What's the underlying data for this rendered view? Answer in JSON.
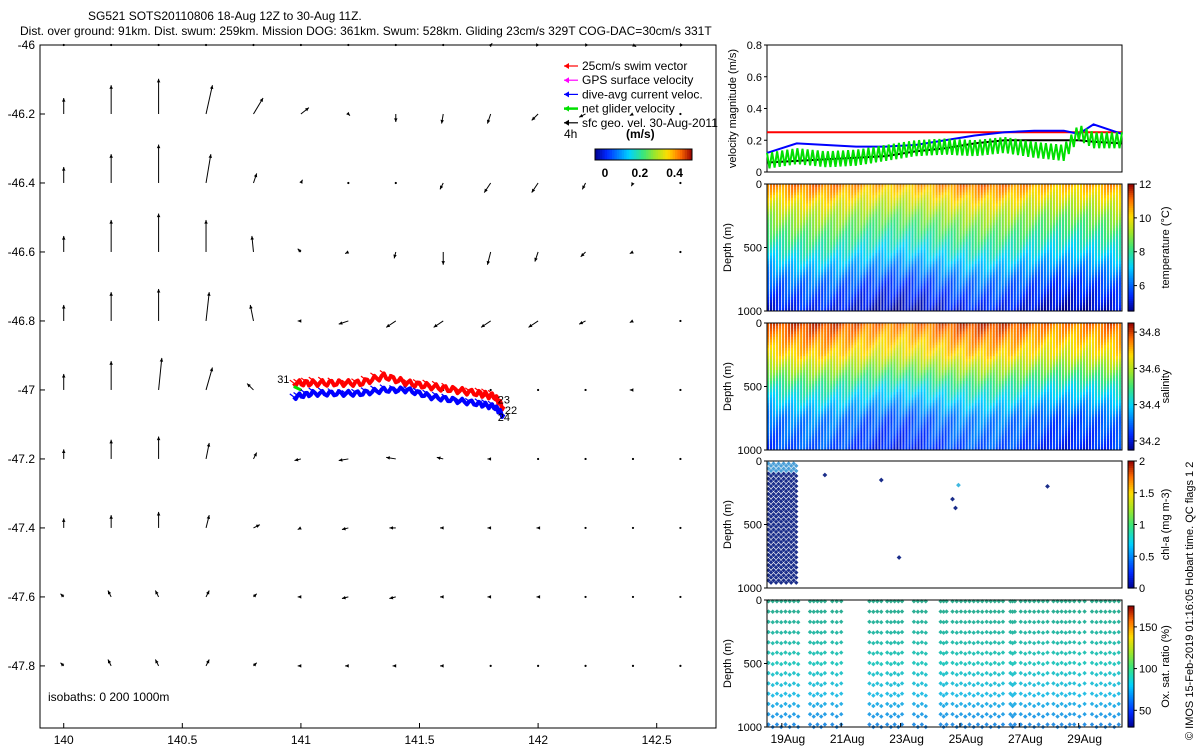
{
  "header": {
    "title": "SG521 SOTS20110806 18-Aug 12Z to 30-Aug 11Z.",
    "subtitle": "Dist. over ground: 91km. Dist. swum: 259km. Mission DOG: 361km. Swum: 528km. Gliding 23cm/s 329T COG-DAC=30cm/s 331T"
  },
  "colors": {
    "swim": "#ff0000",
    "gps": "#ff00ff",
    "dac": "#0000ff",
    "net": "#00e000",
    "geo": "#000000",
    "oxy_marker": "#2ab59a",
    "chl_marker": "#1a2d8a",
    "axis": "#000000"
  },
  "chart_data": [
    {
      "type": "scatter",
      "id": "map",
      "xlim": [
        139.9,
        142.75
      ],
      "ylim": [
        -47.98,
        -46.0
      ],
      "xticks": [
        140,
        140.5,
        141,
        141.5,
        142,
        142.5
      ],
      "xtick_labels": [
        "140",
        "140.5",
        "141",
        "141.5",
        "142",
        "142.5"
      ],
      "yticks": [
        -46,
        -46.2,
        -46.4,
        -46.6,
        -46.8,
        -47,
        -47.2,
        -47.4,
        -47.6,
        -47.8
      ],
      "ytick_labels": [
        "-46",
        "-46.2",
        "-46.4",
        "-46.6",
        "-46.8",
        "-47",
        "-47.2",
        "-47.4",
        "-47.6",
        "-47.8"
      ],
      "legend": {
        "position": "top-right",
        "entries": [
          {
            "label": "25cm/s swim vector",
            "color": "#ff0000"
          },
          {
            "label": "GPS surface velocity",
            "color": "#ff00ff"
          },
          {
            "label": "dive-avg current veloc.",
            "color": "#0000ff"
          },
          {
            "label": "net glider velocity",
            "color": "#00e000"
          },
          {
            "label": "sfc geo. vel. 30-Aug-2011",
            "color": "#000000"
          }
        ],
        "scale_prefix": "4h",
        "colorbar_label": "(m/s)",
        "colorbar_ticks": [
          "0",
          "0.2",
          "0.4"
        ]
      },
      "track_labels": [
        "31",
        "23",
        "22",
        "24"
      ],
      "isobaths_label": "isobaths: 0   200  1000m",
      "grid_lon": [
        140,
        140.2,
        140.4,
        140.6,
        140.8,
        141,
        141.2,
        141.4,
        141.6,
        141.8,
        142,
        142.2,
        142.4,
        142.6
      ],
      "grid_lat": [
        -46,
        -46.2,
        -46.4,
        -46.6,
        -46.8,
        -47,
        -47.2,
        -47.4,
        -47.6,
        -47.8
      ],
      "geo_u": [
        [
          0.0,
          0.0,
          0.0,
          0.0,
          0.0,
          0.0,
          0.0,
          0.0,
          0.0,
          0.01,
          0.01,
          0.02,
          0.02,
          0.02
        ],
        [
          0.0,
          0.0,
          0.0,
          0.04,
          0.06,
          0.05,
          0.01,
          0.0,
          -0.01,
          -0.02,
          -0.04,
          -0.04,
          -0.02,
          0.0
        ],
        [
          0.0,
          0.0,
          0.0,
          0.03,
          0.02,
          0.01,
          0.0,
          0.0,
          -0.02,
          -0.04,
          -0.04,
          -0.02,
          -0.01,
          0.0
        ],
        [
          0.0,
          0.0,
          0.0,
          0.0,
          -0.01,
          -0.02,
          -0.02,
          -0.01,
          0.0,
          -0.02,
          -0.02,
          -0.03,
          -0.02,
          0.0
        ],
        [
          0.0,
          0.0,
          0.0,
          0.02,
          -0.02,
          -0.02,
          -0.06,
          -0.06,
          -0.06,
          -0.06,
          -0.06,
          -0.04,
          -0.02,
          0.0
        ],
        [
          0.0,
          0.0,
          0.02,
          0.04,
          -0.04,
          0.0,
          0.0,
          0.0,
          0.0,
          0.0,
          0.0,
          0.0,
          -0.02,
          0.0
        ],
        [
          0.0,
          0.0,
          0.0,
          0.02,
          0.02,
          -0.04,
          -0.06,
          -0.06,
          -0.04,
          -0.02,
          0.0,
          0.0,
          0.0,
          0.0
        ],
        [
          0.0,
          0.0,
          0.0,
          0.02,
          0.04,
          -0.02,
          -0.04,
          -0.04,
          -0.02,
          -0.02,
          -0.01,
          0.0,
          0.0,
          0.0
        ],
        [
          -0.02,
          -0.02,
          -0.02,
          0.02,
          0.02,
          -0.02,
          -0.04,
          -0.04,
          -0.02,
          -0.02,
          -0.01,
          0.0,
          0.0,
          0.0
        ],
        [
          -0.02,
          -0.02,
          -0.02,
          0.02,
          0.02,
          -0.02,
          -0.02,
          -0.02,
          -0.02,
          0.0,
          0.0,
          0.0,
          0.0,
          0.0
        ]
      ],
      "geo_v": [
        [
          0.0,
          0.0,
          0.0,
          0.0,
          0.0,
          0.0,
          0.0,
          0.0,
          0.0,
          0.01,
          0.0,
          0.0,
          -0.01,
          0.0
        ],
        [
          0.1,
          0.18,
          0.22,
          0.18,
          0.1,
          0.04,
          -0.01,
          -0.05,
          -0.06,
          -0.06,
          -0.04,
          -0.02,
          -0.01,
          0.0
        ],
        [
          0.1,
          0.18,
          0.24,
          0.18,
          0.06,
          0.02,
          0.0,
          0.0,
          -0.04,
          -0.06,
          -0.06,
          -0.04,
          -0.02,
          0.0
        ],
        [
          0.1,
          0.2,
          0.24,
          0.2,
          0.1,
          0.02,
          -0.01,
          -0.04,
          -0.08,
          -0.08,
          -0.06,
          -0.03,
          -0.01,
          0.0
        ],
        [
          0.1,
          0.18,
          0.2,
          0.18,
          0.1,
          0.0,
          -0.02,
          -0.04,
          -0.04,
          -0.04,
          -0.04,
          -0.02,
          -0.01,
          0.0
        ],
        [
          0.1,
          0.18,
          0.2,
          0.14,
          0.04,
          0.0,
          0.0,
          0.0,
          0.0,
          0.0,
          0.0,
          0.0,
          0.0,
          0.0
        ],
        [
          0.06,
          0.12,
          0.14,
          0.1,
          0.04,
          -0.01,
          -0.01,
          0.01,
          0.01,
          0.0,
          0.0,
          0.0,
          0.0,
          0.0
        ],
        [
          0.06,
          0.08,
          0.1,
          0.08,
          0.02,
          -0.01,
          -0.01,
          0.0,
          0.0,
          0.0,
          0.0,
          0.0,
          0.0,
          0.0
        ],
        [
          0.02,
          0.04,
          0.04,
          0.04,
          0.02,
          0.0,
          -0.01,
          -0.01,
          0.0,
          0.0,
          0.0,
          0.0,
          0.0,
          0.0
        ],
        [
          0.02,
          0.04,
          0.04,
          0.04,
          0.02,
          0.0,
          0.0,
          0.0,
          0.0,
          0.0,
          0.0,
          0.0,
          0.0,
          0.0
        ]
      ],
      "track_dac": {
        "lon": [
          140.97,
          141.05,
          141.15,
          141.25,
          141.35,
          141.45,
          141.55,
          141.65,
          141.75,
          141.82,
          141.86
        ],
        "lat": [
          -47.02,
          -47.01,
          -47.01,
          -47.01,
          -47.0,
          -47.0,
          -47.02,
          -47.03,
          -47.04,
          -47.05,
          -47.08
        ]
      },
      "track_swim": {
        "lon": [
          140.97,
          141.05,
          141.15,
          141.25,
          141.35,
          141.45,
          141.55,
          141.65,
          141.75,
          141.82,
          141.86
        ],
        "lat": [
          -46.98,
          -46.98,
          -46.98,
          -46.98,
          -46.96,
          -46.98,
          -46.99,
          -47.0,
          -47.01,
          -47.02,
          -47.06
        ]
      }
    },
    {
      "type": "line",
      "id": "velocity",
      "ylabel": "velocity magnitude (m/s)",
      "ylim": [
        0,
        0.8
      ],
      "yticks": [
        0,
        0.2,
        0.4,
        0.6,
        0.8
      ],
      "ytick_labels": [
        "0",
        "0.2",
        "0.4",
        "0.6",
        "0.8"
      ],
      "x": [
        18.5,
        19.5,
        20.5,
        21.5,
        22.5,
        23.5,
        24.5,
        25.5,
        26.5,
        27.5,
        28.5,
        29.0,
        29.5,
        30.46
      ],
      "series": [
        {
          "color": "#ff0000",
          "values": [
            0.25,
            0.25,
            0.25,
            0.25,
            0.25,
            0.25,
            0.25,
            0.25,
            0.25,
            0.25,
            0.25,
            0.25,
            0.25,
            0.25
          ]
        },
        {
          "color": "#0000ff",
          "values": [
            0.12,
            0.18,
            0.17,
            0.16,
            0.16,
            0.17,
            0.2,
            0.23,
            0.25,
            0.26,
            0.26,
            0.24,
            0.3,
            0.24
          ]
        },
        {
          "color": "#000000",
          "values": [
            0.06,
            0.07,
            0.08,
            0.09,
            0.1,
            0.13,
            0.15,
            0.18,
            0.2,
            0.2,
            0.2,
            0.2,
            0.19,
            0.18
          ]
        },
        {
          "color": "#00e000",
          "values": [
            0.07,
            0.1,
            0.08,
            0.09,
            0.12,
            0.15,
            0.16,
            0.15,
            0.17,
            0.14,
            0.12,
            0.25,
            0.2,
            0.2
          ]
        }
      ]
    },
    {
      "type": "heatmap",
      "id": "temperature",
      "ylabel": "Depth (m)",
      "ylim": [
        1000,
        0
      ],
      "yticks": [
        0,
        500,
        1000
      ],
      "ytick_labels": [
        "0",
        "500",
        "1000"
      ],
      "colorbar_label": "temperature (°C)",
      "colorbar_range": [
        4.5,
        12
      ],
      "colorbar_ticks": [
        6,
        8,
        10,
        12
      ],
      "colorbar_tick_labels": [
        "6",
        "8",
        "10",
        "12"
      ],
      "profile": {
        "depth": [
          0,
          250,
          500,
          750,
          1000
        ],
        "values": [
          10.8,
          9.0,
          7.6,
          6.0,
          5.0
        ]
      }
    },
    {
      "type": "heatmap",
      "id": "salinity",
      "ylabel": "Depth (m)",
      "ylim": [
        1000,
        0
      ],
      "yticks": [
        0,
        500,
        1000
      ],
      "ytick_labels": [
        "0",
        "500",
        "1000"
      ],
      "colorbar_label": "salinity",
      "colorbar_range": [
        34.15,
        34.85
      ],
      "colorbar_ticks": [
        34.2,
        34.4,
        34.6,
        34.8
      ],
      "colorbar_tick_labels": [
        "34.2",
        "34.4",
        "34.6",
        "34.8"
      ],
      "profile": {
        "depth": [
          0,
          250,
          500,
          750,
          1000
        ],
        "values": [
          34.78,
          34.66,
          34.45,
          34.3,
          34.25
        ]
      }
    },
    {
      "type": "scatter",
      "id": "chla",
      "ylabel": "Depth (m)",
      "ylim": [
        1000,
        0
      ],
      "yticks": [
        0,
        500,
        1000
      ],
      "ytick_labels": [
        "0",
        "500",
        "1000"
      ],
      "colorbar_label": "chl-a (mg m-3)",
      "colorbar_range": [
        0,
        2
      ],
      "colorbar_ticks": [
        0,
        0.5,
        1,
        1.5,
        2
      ],
      "colorbar_tick_labels": [
        "0",
        "0.5",
        "1",
        "1.5",
        "2"
      ],
      "isolated_points": {
        "day": [
          20.45,
          22.35,
          22.95,
          24.75,
          24.85,
          24.95,
          27.95
        ],
        "depth": [
          110,
          150,
          760,
          300,
          370,
          190,
          200
        ]
      }
    },
    {
      "type": "scatter",
      "id": "oxygen",
      "ylabel": "Depth (m)",
      "ylim": [
        1000,
        0
      ],
      "yticks": [
        0,
        500,
        1000
      ],
      "ytick_labels": [
        "0",
        "500",
        "1000"
      ],
      "colorbar_label": "Ox. sat. ratio (%)",
      "colorbar_range": [
        30,
        175
      ],
      "colorbar_ticks": [
        50,
        100,
        150
      ],
      "colorbar_tick_labels": [
        "50",
        "100",
        "150"
      ],
      "x_dates": [
        "19Aug",
        "21Aug",
        "23Aug",
        "25Aug",
        "27Aug",
        "29Aug"
      ],
      "x_days": [
        19,
        21,
        23,
        25,
        27,
        29
      ],
      "xlim": [
        18.5,
        30.46
      ],
      "data_intervals": [
        [
          18.55,
          19.55
        ],
        [
          19.95,
          20.45
        ],
        [
          20.7,
          21.0
        ],
        [
          21.95,
          22.35
        ],
        [
          22.55,
          23.05
        ],
        [
          23.45,
          23.85
        ],
        [
          24.35,
          24.55
        ],
        [
          24.75,
          25.75
        ],
        [
          25.9,
          26.45
        ],
        [
          26.7,
          26.85
        ],
        [
          27.05,
          27.95
        ],
        [
          28.15,
          28.7
        ],
        [
          28.85,
          29.2
        ],
        [
          29.45,
          30.35
        ]
      ]
    }
  ],
  "watermark": "© IMOS 15-Feb-2019 01:16:05 Hobart time. QC flags 1  2"
}
